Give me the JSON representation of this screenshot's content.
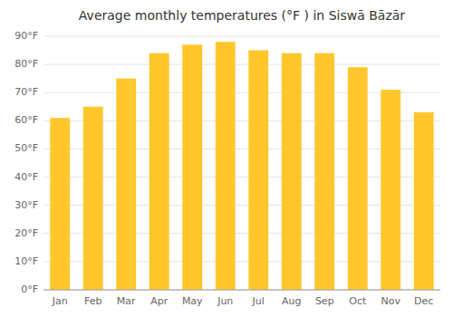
{
  "chart_data": {
    "type": "bar",
    "title": "Average monthly temperatures (°F ) in Siswā Bāzār",
    "categories": [
      "Jan",
      "Feb",
      "Mar",
      "Apr",
      "May",
      "Jun",
      "Jul",
      "Aug",
      "Sep",
      "Oct",
      "Nov",
      "Dec"
    ],
    "values": [
      61,
      65,
      75,
      84,
      87,
      88,
      85,
      84,
      84,
      79,
      71,
      63
    ],
    "color": "#FFC72C",
    "ylim": [
      0,
      90
    ],
    "yticks": [
      {
        "value": 0,
        "label": "0°F"
      },
      {
        "value": 10,
        "label": "10°F"
      },
      {
        "value": 20,
        "label": "20°F"
      },
      {
        "value": 30,
        "label": "30°F"
      },
      {
        "value": 40,
        "label": "40°F"
      },
      {
        "value": 50,
        "label": "50°F"
      },
      {
        "value": 60,
        "label": "60°F"
      },
      {
        "value": 70,
        "label": "70°F"
      },
      {
        "value": 80,
        "label": "80°F"
      },
      {
        "value": 90,
        "label": "90°F"
      }
    ],
    "grid": true
  }
}
